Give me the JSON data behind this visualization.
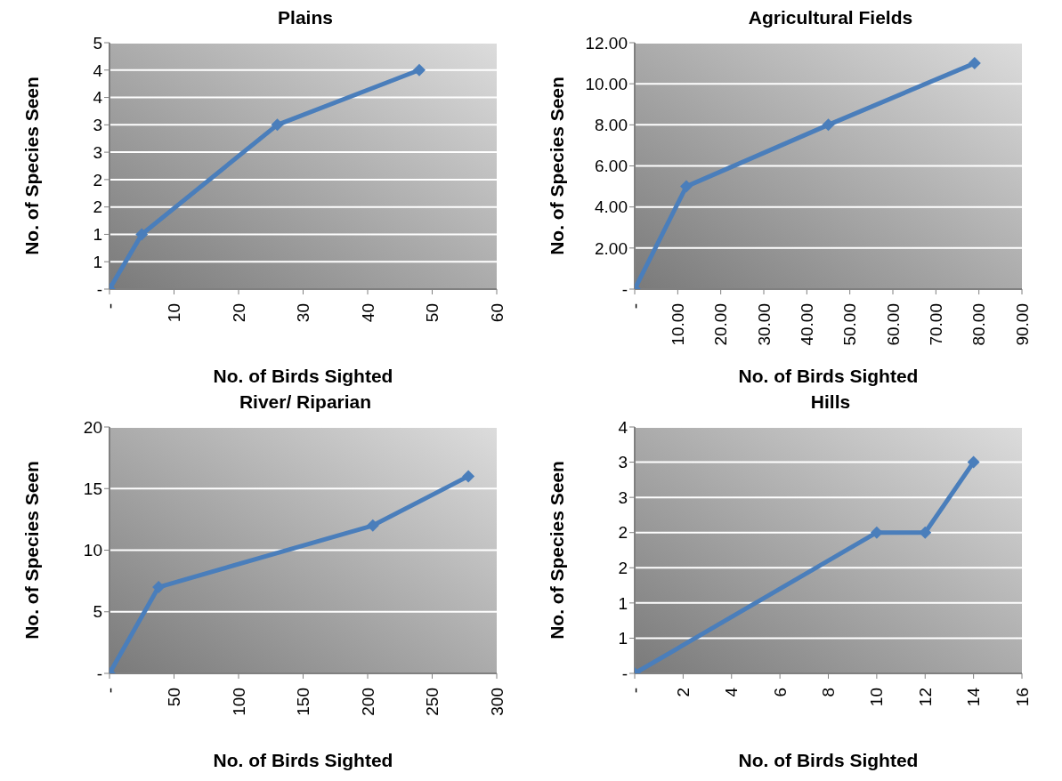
{
  "chart_data": [
    {
      "type": "line",
      "title": "Plains",
      "xlabel": "No. of Birds Sighted",
      "ylabel": "No. of Species Seen",
      "marker": "diamond",
      "grid": "y",
      "x": [
        0,
        5,
        26,
        48
      ],
      "series": [
        {
          "color": "#4a7ebb",
          "values": [
            0,
            1,
            3,
            4
          ]
        }
      ],
      "xlim": [
        0,
        60
      ],
      "xticks": [
        {
          "value": 0,
          "label": "-"
        },
        10,
        20,
        30,
        40,
        50,
        60
      ],
      "ylim": [
        0,
        4.5
      ],
      "yticks": [
        {
          "value": 0,
          "label": "-"
        },
        {
          "value": 0.5,
          "label": "1"
        },
        1,
        {
          "value": 1.5,
          "label": "2"
        },
        2,
        {
          "value": 2.5,
          "label": "3"
        },
        3,
        {
          "value": 3.5,
          "label": "4"
        },
        4,
        {
          "value": 4.5,
          "label": "5"
        }
      ]
    },
    {
      "type": "line",
      "title": "Agricultural Fields",
      "xlabel": "No. of Birds Sighted",
      "ylabel": "No. of Species Seen",
      "marker": "diamond",
      "grid": "y",
      "x": [
        0,
        12,
        45,
        79
      ],
      "series": [
        {
          "color": "#4a7ebb",
          "values": [
            0,
            5,
            8,
            11
          ]
        }
      ],
      "xlim": [
        0,
        90
      ],
      "xticks": [
        {
          "value": 0,
          "label": "-"
        },
        {
          "value": 10,
          "label": "10.00"
        },
        {
          "value": 20,
          "label": "20.00"
        },
        {
          "value": 30,
          "label": "30.00"
        },
        {
          "value": 40,
          "label": "40.00"
        },
        {
          "value": 50,
          "label": "50.00"
        },
        {
          "value": 60,
          "label": "60.00"
        },
        {
          "value": 70,
          "label": "70.00"
        },
        {
          "value": 80,
          "label": "80.00"
        },
        {
          "value": 90,
          "label": "90.00"
        }
      ],
      "ylim": [
        0,
        12
      ],
      "yticks": [
        {
          "value": 0,
          "label": "-"
        },
        {
          "value": 2,
          "label": "2.00"
        },
        {
          "value": 4,
          "label": "4.00"
        },
        {
          "value": 6,
          "label": "6.00"
        },
        {
          "value": 8,
          "label": "8.00"
        },
        {
          "value": 10,
          "label": "10.00"
        },
        {
          "value": 12,
          "label": "12.00"
        }
      ]
    },
    {
      "type": "line",
      "title": "River/ Riparian",
      "xlabel": "No. of Birds Sighted",
      "ylabel": "No. of Species Seen",
      "marker": "diamond",
      "grid": "y",
      "x": [
        0,
        38,
        204,
        278
      ],
      "series": [
        {
          "color": "#4a7ebb",
          "values": [
            0,
            7,
            12,
            16
          ]
        }
      ],
      "xlim": [
        0,
        300
      ],
      "xticks": [
        {
          "value": 0,
          "label": "-"
        },
        50,
        100,
        150,
        200,
        250,
        300
      ],
      "ylim": [
        0,
        20
      ],
      "yticks": [
        {
          "value": 0,
          "label": "-"
        },
        5,
        10,
        15,
        20
      ]
    },
    {
      "type": "line",
      "title": "Hills",
      "xlabel": "No. of Birds Sighted",
      "ylabel": "No. of Species Seen",
      "marker": "diamond",
      "grid": "y",
      "x": [
        0,
        10,
        12,
        14
      ],
      "series": [
        {
          "color": "#4a7ebb",
          "values": [
            0,
            2,
            2,
            3
          ]
        }
      ],
      "xlim": [
        0,
        16
      ],
      "xticks": [
        {
          "value": 0,
          "label": "-"
        },
        2,
        4,
        6,
        8,
        10,
        12,
        14,
        16
      ],
      "ylim": [
        0,
        3.5
      ],
      "yticks": [
        {
          "value": 0,
          "label": "-"
        },
        {
          "value": 0.5,
          "label": "1"
        },
        1,
        {
          "value": 1.5,
          "label": "2"
        },
        2,
        {
          "value": 2.5,
          "label": "3"
        },
        3,
        {
          "value": 3.5,
          "label": "4"
        }
      ]
    }
  ]
}
